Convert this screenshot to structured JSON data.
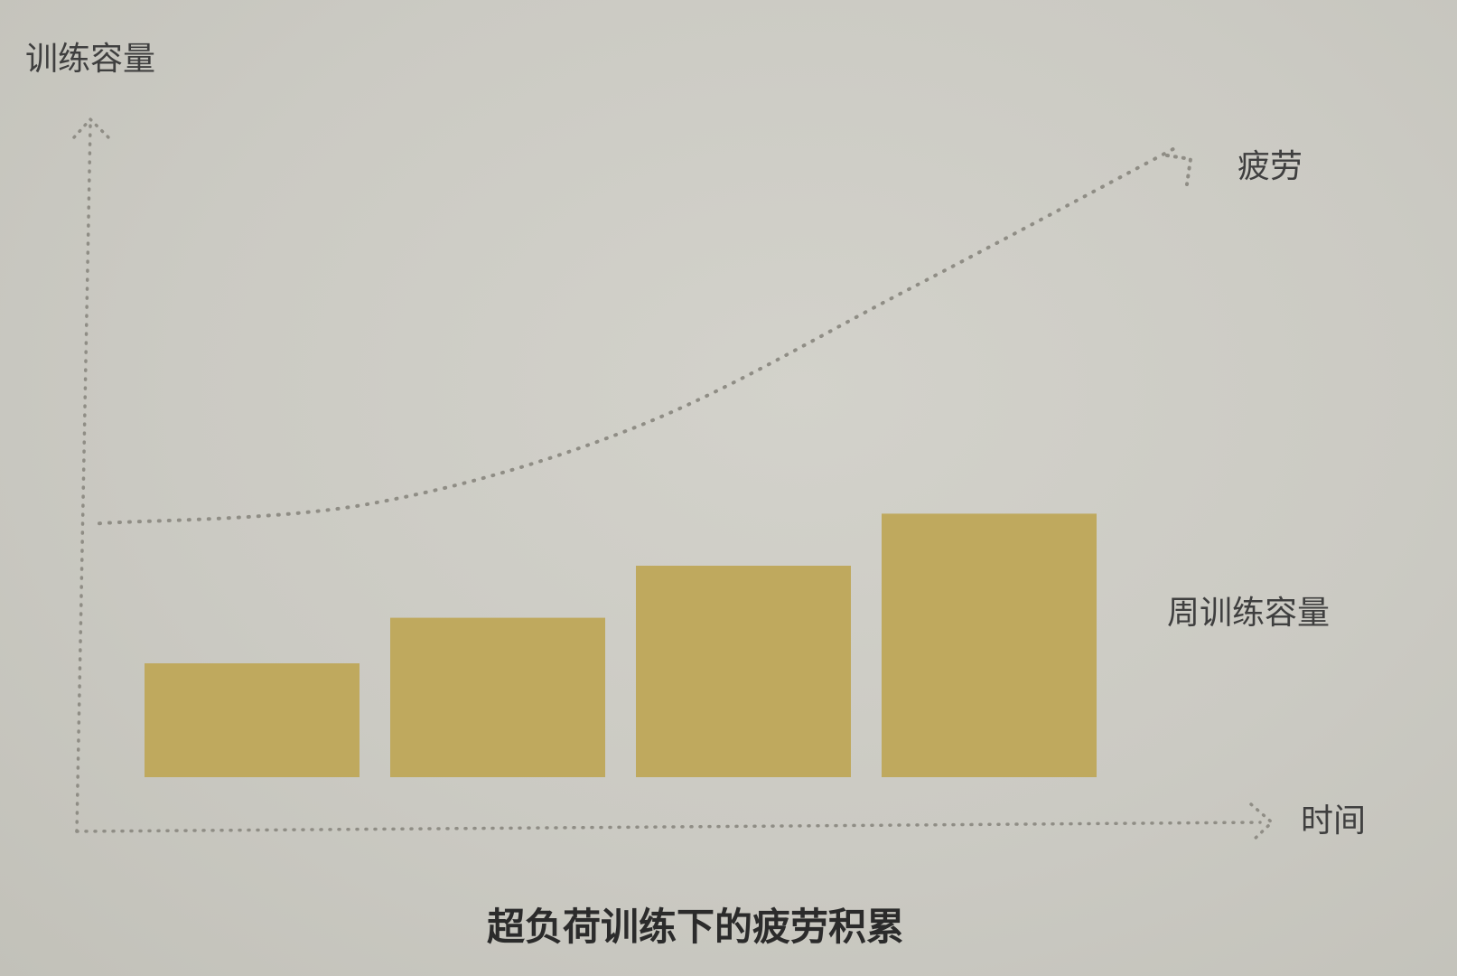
{
  "chart_data": {
    "type": "bar",
    "title": "超负荷训练下的疲劳积累",
    "ylabel": "训练容量",
    "xlabel": "时间",
    "categories": [
      "",
      "",
      "",
      ""
    ],
    "series": [
      {
        "name": "周训练容量",
        "type": "bar",
        "values": [
          17.5,
          24.5,
          32.5,
          40.5
        ],
        "color": "#bfa95e"
      },
      {
        "name": "疲劳",
        "type": "line",
        "style": "dotted",
        "x": [
          0,
          0.25,
          0.5,
          0.75,
          1
        ],
        "values": [
          39,
          42,
          54,
          75,
          97
        ],
        "color": "#8f8d85"
      }
    ],
    "ylim": [
      0,
      100
    ],
    "grid": false,
    "legend": "inline"
  }
}
